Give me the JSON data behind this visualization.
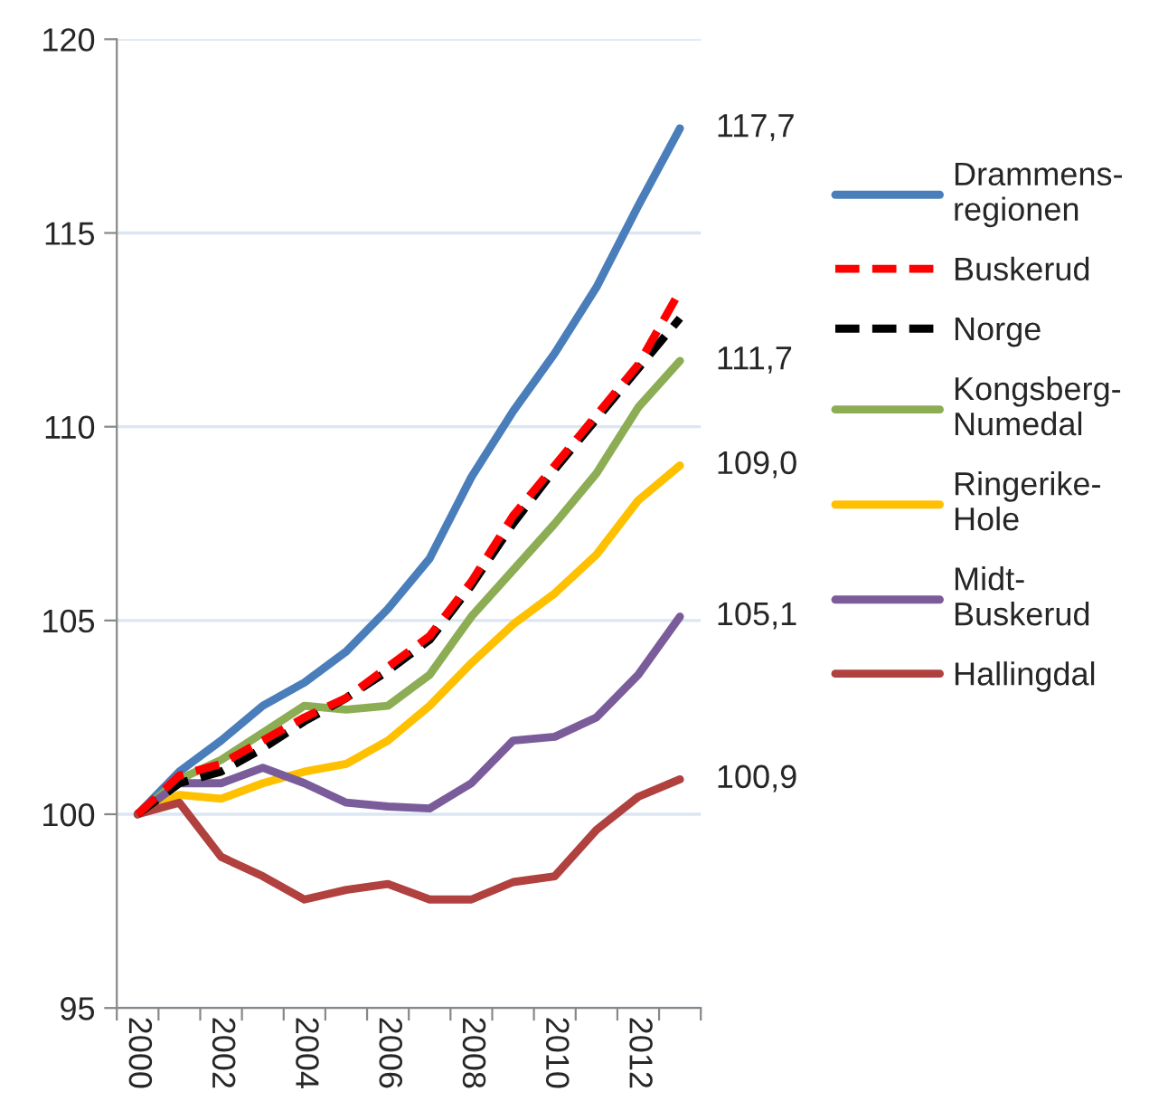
{
  "chart_data": {
    "type": "line",
    "categories": [
      "2000",
      null,
      "2002",
      null,
      "2004",
      null,
      "2006",
      null,
      "2008",
      null,
      "2010",
      null,
      "2012",
      null
    ],
    "ylim": [
      95,
      120
    ],
    "yticks": [
      95,
      100,
      105,
      110,
      115,
      120
    ],
    "grid": "y",
    "legend": "right",
    "marker": "none",
    "series": [
      {
        "name": "Drammens-\nregionen",
        "color": "#4a7ebb",
        "line_style": "solid",
        "values": [
          100,
          101.1,
          101.9,
          102.8,
          103.4,
          104.2,
          105.3,
          106.6,
          108.7,
          110.4,
          111.9,
          113.6,
          115.7,
          117.7
        ],
        "value_labels": [
          null,
          null,
          null,
          null,
          null,
          null,
          null,
          null,
          null,
          null,
          null,
          null,
          null,
          "117,7"
        ]
      },
      {
        "name": "Buskerud",
        "color": "#ff0000",
        "line_style": "dashed",
        "values": [
          100,
          101.0,
          101.3,
          101.9,
          102.5,
          103.0,
          103.8,
          104.6,
          106.0,
          107.7,
          109.0,
          110.3,
          111.6,
          113.5
        ]
      },
      {
        "name": "Norge",
        "color": "#000000",
        "line_style": "dashed",
        "values": [
          100,
          100.8,
          101.1,
          101.7,
          102.4,
          103.0,
          103.7,
          104.5,
          105.9,
          107.5,
          108.9,
          110.2,
          111.5,
          112.8
        ]
      },
      {
        "name": "Kongsberg-\nNumedal",
        "color": "#8cad54",
        "line_style": "solid",
        "values": [
          100,
          100.9,
          101.4,
          102.1,
          102.8,
          102.7,
          102.8,
          103.6,
          105.1,
          106.3,
          107.5,
          108.8,
          110.5,
          111.7
        ],
        "value_labels": [
          null,
          null,
          null,
          null,
          null,
          null,
          null,
          null,
          null,
          null,
          null,
          null,
          null,
          "111,7"
        ]
      },
      {
        "name": "Ringerike-\nHole",
        "color": "#ffc000",
        "line_style": "solid",
        "values": [
          100,
          100.5,
          100.4,
          100.8,
          101.1,
          101.3,
          101.9,
          102.8,
          103.9,
          104.9,
          105.7,
          106.7,
          108.1,
          109.0
        ],
        "value_labels": [
          null,
          null,
          null,
          null,
          null,
          null,
          null,
          null,
          null,
          null,
          null,
          null,
          null,
          "109,0"
        ]
      },
      {
        "name": "Midt-\nBuskerud",
        "color": "#7a5c9a",
        "line_style": "solid",
        "values": [
          100,
          100.8,
          100.8,
          101.2,
          100.8,
          100.3,
          100.2,
          100.15,
          100.8,
          101.9,
          102.0,
          102.5,
          103.6,
          105.1
        ],
        "value_labels": [
          null,
          null,
          null,
          null,
          null,
          null,
          null,
          null,
          null,
          null,
          null,
          null,
          null,
          "105,1"
        ]
      },
      {
        "name": "Hallingdal",
        "color": "#b0413e",
        "line_style": "solid",
        "values": [
          100,
          100.3,
          98.9,
          98.4,
          97.8,
          98.05,
          98.2,
          97.8,
          97.8,
          98.25,
          98.4,
          99.6,
          100.45,
          100.9
        ],
        "value_labels": [
          null,
          null,
          null,
          null,
          null,
          null,
          null,
          null,
          null,
          null,
          null,
          null,
          null,
          "100,9"
        ]
      }
    ]
  }
}
